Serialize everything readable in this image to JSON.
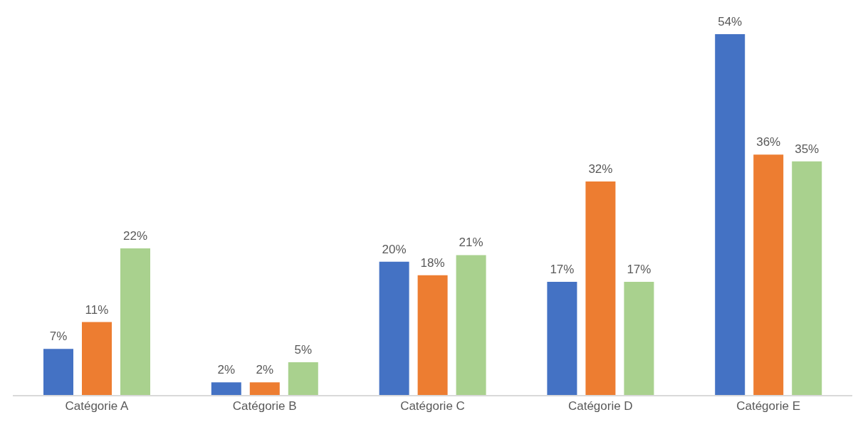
{
  "chart_data": {
    "type": "bar",
    "categories": [
      "Catégorie A",
      "Catégorie B",
      "Catégorie C",
      "Catégorie D",
      "Catégorie E"
    ],
    "series": [
      {
        "color": "#4472c4",
        "values": [
          7,
          2,
          20,
          17,
          54
        ],
        "value_labels": [
          "7%",
          "2%",
          "20%",
          "17%",
          "54%"
        ]
      },
      {
        "color": "#ed7d31",
        "values": [
          11,
          2,
          18,
          32,
          36
        ],
        "value_labels": [
          "11%",
          "2%",
          "18%",
          "32%",
          "36%"
        ]
      },
      {
        "color": "#a9d18e",
        "values": [
          22,
          5,
          21,
          17,
          35
        ],
        "value_labels": [
          "22%",
          "5%",
          "21%",
          "17%",
          "35%"
        ]
      }
    ],
    "grid": false
  }
}
